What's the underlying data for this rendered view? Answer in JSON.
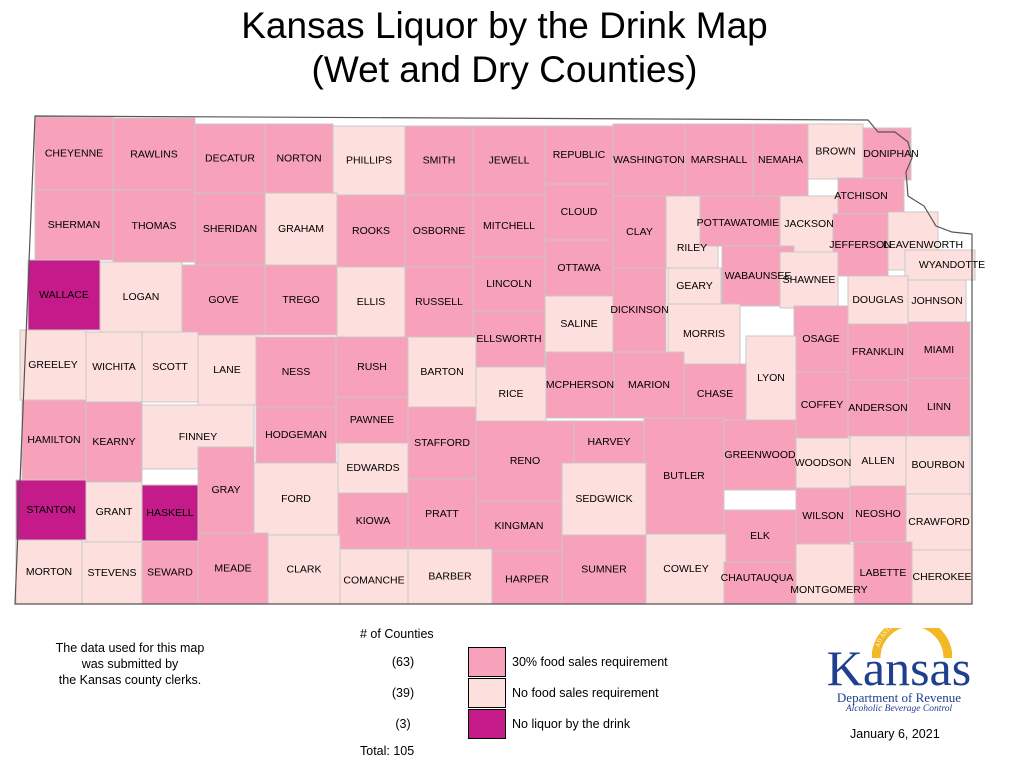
{
  "title_line1": "Kansas Liquor by the Drink Map",
  "title_line2": "(Wet and Dry Counties)",
  "colors": {
    "food30": "#f7a1bb",
    "nofood": "#fde0dd",
    "dry": "#c51b8a"
  },
  "counties": [
    {
      "name": "CHEYENNE",
      "cat": "food30"
    },
    {
      "name": "RAWLINS",
      "cat": "food30"
    },
    {
      "name": "DECATUR",
      "cat": "food30"
    },
    {
      "name": "NORTON",
      "cat": "food30"
    },
    {
      "name": "PHILLIPS",
      "cat": "nofood"
    },
    {
      "name": "SMITH",
      "cat": "food30"
    },
    {
      "name": "JEWELL",
      "cat": "food30"
    },
    {
      "name": "REPUBLIC",
      "cat": "food30"
    },
    {
      "name": "WASHINGTON",
      "cat": "food30"
    },
    {
      "name": "MARSHALL",
      "cat": "food30"
    },
    {
      "name": "NEMAHA",
      "cat": "food30"
    },
    {
      "name": "BROWN",
      "cat": "nofood"
    },
    {
      "name": "DONIPHAN",
      "cat": "food30"
    },
    {
      "name": "SHERMAN",
      "cat": "food30"
    },
    {
      "name": "THOMAS",
      "cat": "food30"
    },
    {
      "name": "SHERIDAN",
      "cat": "food30"
    },
    {
      "name": "GRAHAM",
      "cat": "nofood"
    },
    {
      "name": "ROOKS",
      "cat": "food30"
    },
    {
      "name": "OSBORNE",
      "cat": "food30"
    },
    {
      "name": "MITCHELL",
      "cat": "food30"
    },
    {
      "name": "CLOUD",
      "cat": "food30"
    },
    {
      "name": "CLAY",
      "cat": "food30"
    },
    {
      "name": "RILEY",
      "cat": "nofood"
    },
    {
      "name": "POTTAWATOMIE",
      "cat": "food30"
    },
    {
      "name": "JACKSON",
      "cat": "nofood"
    },
    {
      "name": "ATCHISON",
      "cat": "food30"
    },
    {
      "name": "JEFFERSON",
      "cat": "food30"
    },
    {
      "name": "LEAVENWORTH",
      "cat": "nofood"
    },
    {
      "name": "WYANDOTTE",
      "cat": "nofood"
    },
    {
      "name": "WALLACE",
      "cat": "dry"
    },
    {
      "name": "LOGAN",
      "cat": "nofood"
    },
    {
      "name": "GOVE",
      "cat": "food30"
    },
    {
      "name": "TREGO",
      "cat": "food30"
    },
    {
      "name": "ELLIS",
      "cat": "nofood"
    },
    {
      "name": "RUSSELL",
      "cat": "food30"
    },
    {
      "name": "LINCOLN",
      "cat": "food30"
    },
    {
      "name": "OTTAWA",
      "cat": "food30"
    },
    {
      "name": "SALINE",
      "cat": "nofood"
    },
    {
      "name": "DICKINSON",
      "cat": "food30"
    },
    {
      "name": "GEARY",
      "cat": "nofood"
    },
    {
      "name": "WABAUNSEE",
      "cat": "food30"
    },
    {
      "name": "SHAWNEE",
      "cat": "nofood"
    },
    {
      "name": "DOUGLAS",
      "cat": "nofood"
    },
    {
      "name": "JOHNSON",
      "cat": "nofood"
    },
    {
      "name": "ELLSWORTH",
      "cat": "food30"
    },
    {
      "name": "MORRIS",
      "cat": "nofood"
    },
    {
      "name": "OSAGE",
      "cat": "food30"
    },
    {
      "name": "FRANKLIN",
      "cat": "food30"
    },
    {
      "name": "MIAMI",
      "cat": "food30"
    },
    {
      "name": "GREELEY",
      "cat": "nofood"
    },
    {
      "name": "WICHITA",
      "cat": "nofood"
    },
    {
      "name": "SCOTT",
      "cat": "nofood"
    },
    {
      "name": "LANE",
      "cat": "nofood"
    },
    {
      "name": "NESS",
      "cat": "food30"
    },
    {
      "name": "RUSH",
      "cat": "food30"
    },
    {
      "name": "BARTON",
      "cat": "nofood"
    },
    {
      "name": "RICE",
      "cat": "nofood"
    },
    {
      "name": "MCPHERSON",
      "cat": "food30"
    },
    {
      "name": "MARION",
      "cat": "food30"
    },
    {
      "name": "CHASE",
      "cat": "food30"
    },
    {
      "name": "LYON",
      "cat": "nofood"
    },
    {
      "name": "COFFEY",
      "cat": "food30"
    },
    {
      "name": "ANDERSON",
      "cat": "food30"
    },
    {
      "name": "LINN",
      "cat": "food30"
    },
    {
      "name": "HAMILTON",
      "cat": "food30"
    },
    {
      "name": "KEARNY",
      "cat": "food30"
    },
    {
      "name": "FINNEY",
      "cat": "nofood"
    },
    {
      "name": "HODGEMAN",
      "cat": "food30"
    },
    {
      "name": "PAWNEE",
      "cat": "food30"
    },
    {
      "name": "STAFFORD",
      "cat": "food30"
    },
    {
      "name": "RENO",
      "cat": "food30"
    },
    {
      "name": "HARVEY",
      "cat": "food30"
    },
    {
      "name": "BUTLER",
      "cat": "food30"
    },
    {
      "name": "GREENWOOD",
      "cat": "food30"
    },
    {
      "name": "WOODSON",
      "cat": "nofood"
    },
    {
      "name": "ALLEN",
      "cat": "nofood"
    },
    {
      "name": "BOURBON",
      "cat": "nofood"
    },
    {
      "name": "EDWARDS",
      "cat": "nofood"
    },
    {
      "name": "GRAY",
      "cat": "food30"
    },
    {
      "name": "FORD",
      "cat": "nofood"
    },
    {
      "name": "STANTON",
      "cat": "dry"
    },
    {
      "name": "GRANT",
      "cat": "nofood"
    },
    {
      "name": "HASKELL",
      "cat": "dry"
    },
    {
      "name": "KIOWA",
      "cat": "food30"
    },
    {
      "name": "PRATT",
      "cat": "food30"
    },
    {
      "name": "KINGMAN",
      "cat": "food30"
    },
    {
      "name": "SEDGWICK",
      "cat": "nofood"
    },
    {
      "name": "ELK",
      "cat": "food30"
    },
    {
      "name": "WILSON",
      "cat": "food30"
    },
    {
      "name": "NEOSHO",
      "cat": "food30"
    },
    {
      "name": "CRAWFORD",
      "cat": "nofood"
    },
    {
      "name": "MORTON",
      "cat": "nofood"
    },
    {
      "name": "STEVENS",
      "cat": "nofood"
    },
    {
      "name": "SEWARD",
      "cat": "food30"
    },
    {
      "name": "MEADE",
      "cat": "food30"
    },
    {
      "name": "CLARK",
      "cat": "nofood"
    },
    {
      "name": "COMANCHE",
      "cat": "nofood"
    },
    {
      "name": "BARBER",
      "cat": "nofood"
    },
    {
      "name": "HARPER",
      "cat": "food30"
    },
    {
      "name": "SUMNER",
      "cat": "food30"
    },
    {
      "name": "COWLEY",
      "cat": "nofood"
    },
    {
      "name": "CHAUTAUQUA",
      "cat": "food30"
    },
    {
      "name": "MONTGOMERY",
      "cat": "nofood"
    },
    {
      "name": "LABETTE",
      "cat": "food30"
    },
    {
      "name": "CHEROKEE",
      "cat": "nofood"
    }
  ],
  "note": {
    "line1": "The data used for this map",
    "line2": "was submitted by",
    "line3": "the Kansas county clerks."
  },
  "legend": {
    "header": "# of Counties",
    "items": [
      {
        "count": "(63)",
        "label": "30% food sales requirement",
        "color": "#f7a1bb"
      },
      {
        "count": "(39)",
        "label": "No food sales requirement",
        "color": "#fde0dd"
      },
      {
        "count": "(3)",
        "label": "No liquor by the drink",
        "color": "#c51b8a"
      }
    ],
    "total": "Total: 105"
  },
  "logo": {
    "motto": "AD ASTRA PER ASPERA",
    "word": "Kansas",
    "sub": "Department of Revenue",
    "sub2": "Alcoholic Beverage Control"
  },
  "date": "January 6, 2021"
}
